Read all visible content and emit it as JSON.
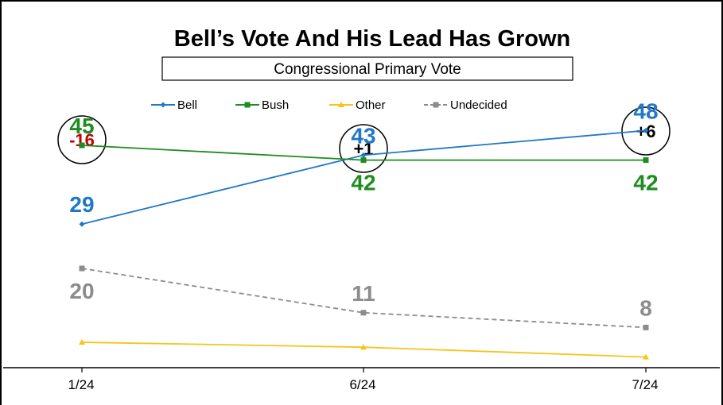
{
  "chart_data": {
    "type": "line",
    "title": "Bell’s Vote And His Lead Has Grown",
    "subtitle": "Congressional Primary Vote",
    "categories": [
      "1/24",
      "6/24",
      "7/24"
    ],
    "ylim": [
      0,
      52
    ],
    "grid": false,
    "legend_position": "top-center",
    "series": [
      {
        "name": "Bell",
        "values": [
          29,
          43,
          48
        ],
        "color": "#1F78C8",
        "marker": "diamond",
        "dash": false,
        "label_color": "#1F78C8",
        "label_pos": [
          "above",
          "above",
          "above"
        ]
      },
      {
        "name": "Bush",
        "values": [
          45,
          42,
          42
        ],
        "color": "#1E8C1E",
        "marker": "square",
        "dash": false,
        "label_color": "#1E8C1E",
        "label_pos": [
          "above",
          "below",
          "below"
        ]
      },
      {
        "name": "Other",
        "values": [
          5,
          4,
          2
        ],
        "color": "#F5C518",
        "marker": "triangle",
        "dash": false,
        "show_labels": false
      },
      {
        "name": "Undecided",
        "values": [
          20,
          11,
          8
        ],
        "color": "#8C8C8C",
        "marker": "square",
        "dash": true,
        "label_color": "#8C8C8C",
        "label_pos": [
          "below",
          "above",
          "above"
        ]
      }
    ],
    "margins": [
      {
        "text": "-16",
        "color": "#C00000"
      },
      {
        "text": "+1",
        "color": "#000000"
      },
      {
        "text": "+6",
        "color": "#000000"
      }
    ]
  }
}
